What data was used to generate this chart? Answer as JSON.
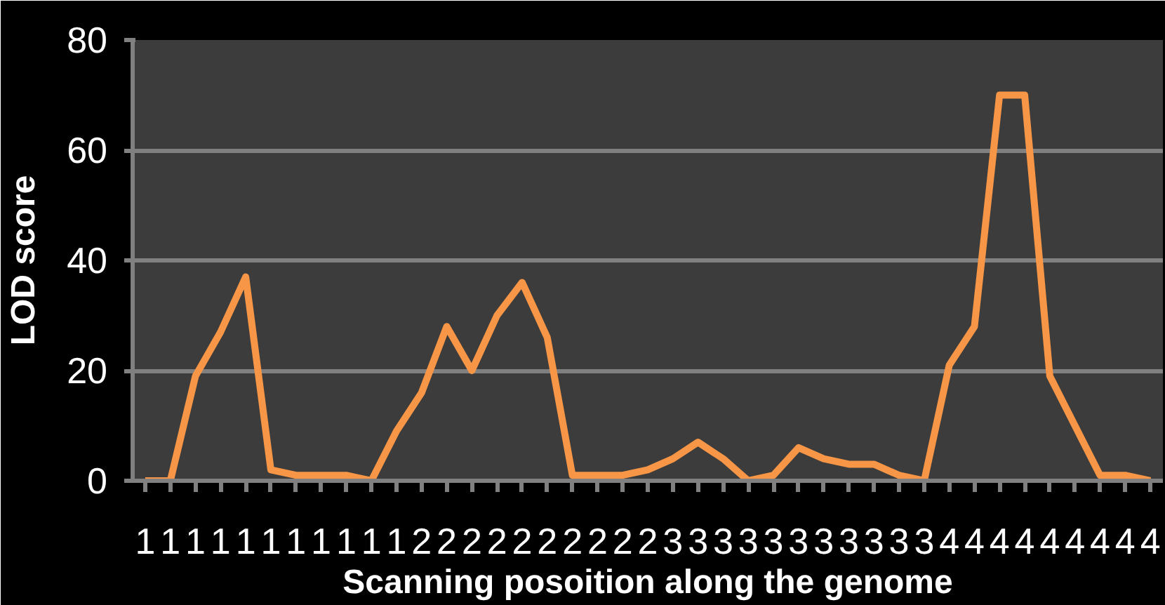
{
  "chart_data": {
    "type": "line",
    "xlabel": "Scanning posoition along the genome",
    "ylabel": "LOD score",
    "categories": [
      "1",
      "1",
      "1",
      "1",
      "1",
      "1",
      "1",
      "1",
      "1",
      "1",
      "1",
      "2",
      "2",
      "2",
      "2",
      "2",
      "2",
      "2",
      "2",
      "2",
      "2",
      "3",
      "3",
      "3",
      "3",
      "3",
      "3",
      "3",
      "3",
      "3",
      "3",
      "3",
      "4",
      "4",
      "4",
      "4",
      "4",
      "4",
      "4",
      "4",
      "4"
    ],
    "series": [
      {
        "color": "#f79646",
        "values": [
          0,
          0,
          19,
          27,
          37,
          2,
          1,
          1,
          1,
          0,
          9,
          16,
          28,
          20,
          30,
          36,
          26,
          1,
          1,
          1,
          2,
          4,
          7,
          4,
          0,
          1,
          6,
          4,
          3,
          3,
          1,
          0,
          21,
          28,
          70,
          70,
          19,
          10,
          1,
          1,
          0
        ]
      }
    ],
    "ylim": [
      0,
      80
    ],
    "yticks": [
      0,
      20,
      40,
      60,
      80
    ],
    "grid": "y",
    "line_style": "solid"
  }
}
